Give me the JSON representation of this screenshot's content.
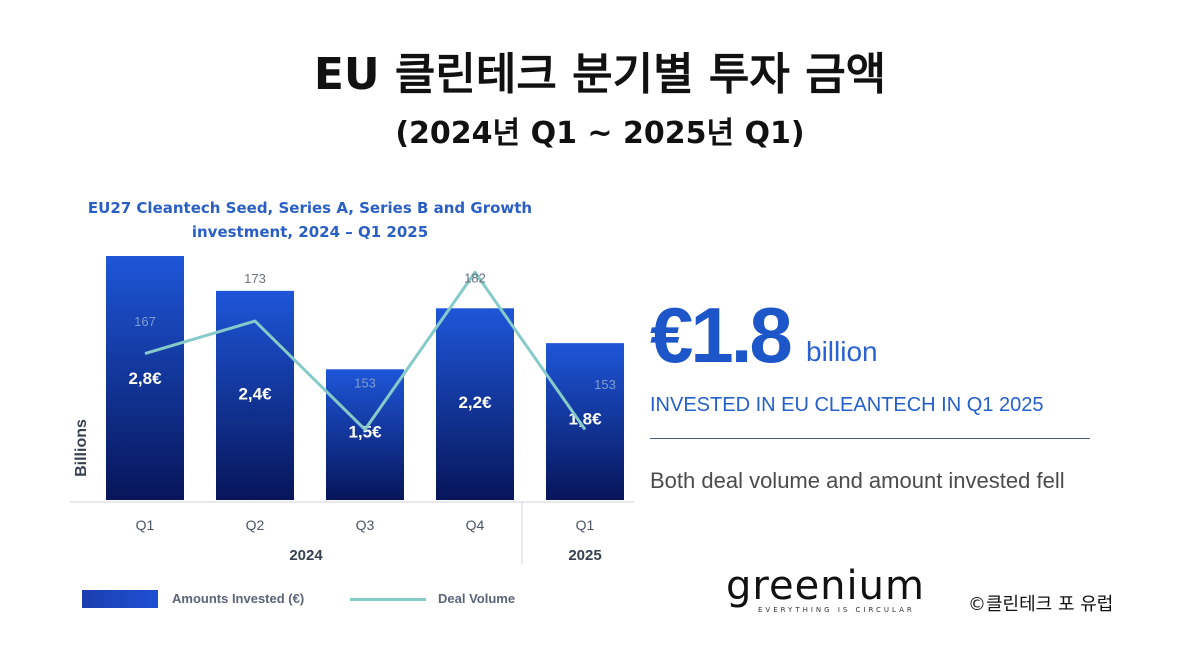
{
  "header": {
    "title": "EU 클린테크 분기별 투자 금액",
    "subtitle": "(2024년 Q1 ~ 2025년 Q1)"
  },
  "chart_data": {
    "type": "bar",
    "title_line1": "EU27 Cleantech Seed, Series A, Series B and Growth",
    "title_line2": "investment, 2024 – Q1 2025",
    "ylabel": "Billions",
    "categories": [
      "Q1",
      "Q2",
      "Q3",
      "Q4",
      "Q1"
    ],
    "year_groups": [
      {
        "label": "2024",
        "categories": 4
      },
      {
        "label": "2025",
        "categories": 1
      }
    ],
    "series": [
      {
        "name": "Amounts Invested (€)",
        "type": "bar",
        "values": [
          2.8,
          2.4,
          1.5,
          2.2,
          1.8
        ],
        "labels": [
          "2,8€",
          "2,4€",
          "1,5€",
          "2,2€",
          "1,8€"
        ]
      },
      {
        "name": "Deal Volume",
        "type": "line",
        "values": [
          167,
          173,
          153,
          182,
          153
        ],
        "labels": [
          "167",
          "173",
          "153",
          "182",
          "153"
        ]
      }
    ],
    "y_left_range": [
      0,
      2.8
    ],
    "y_right_range": [
      140,
      185
    ],
    "grid": false,
    "legend": "bottom-left",
    "colors": {
      "bar_top": "#1e56d8",
      "bar_bottom": "#07155a",
      "line": "#86cbc9"
    }
  },
  "highlight": {
    "value": "€1.8",
    "unit": "billion",
    "caption": "INVESTED IN EU CLEANTECH IN Q1 2025",
    "summary": "Both deal volume and amount invested fell"
  },
  "footer": {
    "logo_word": "greenium",
    "logo_tagline": "EVERYTHING IS CIRCULAR",
    "credit": "©클린테크 포 유럽"
  }
}
